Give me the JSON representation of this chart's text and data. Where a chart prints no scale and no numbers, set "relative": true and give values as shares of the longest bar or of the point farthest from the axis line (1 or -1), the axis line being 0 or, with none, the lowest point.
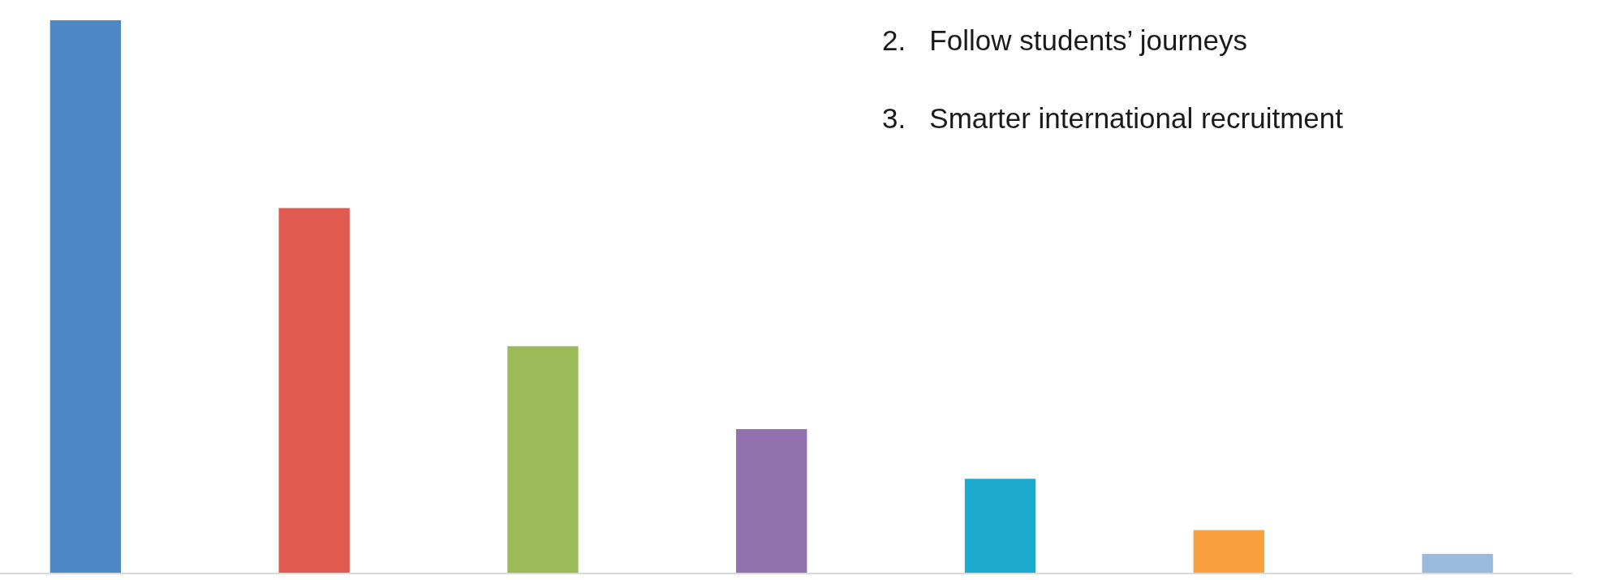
{
  "chart_data": {
    "type": "bar",
    "relative": true,
    "categories": [
      null,
      null,
      null,
      null,
      null,
      null,
      null
    ],
    "values": [
      1,
      0.66,
      0.41,
      0.26,
      0.17,
      0.077,
      0.034
    ],
    "colors": [
      "#4f86c6",
      "#e05a4f",
      "#9bbb59",
      "#9370ae",
      "#1daacf",
      "#f9a03f",
      "#9bb9dd"
    ],
    "annotations": [
      "2. Follow students’ journeys",
      "3. Smarter international recruitment"
    ]
  }
}
